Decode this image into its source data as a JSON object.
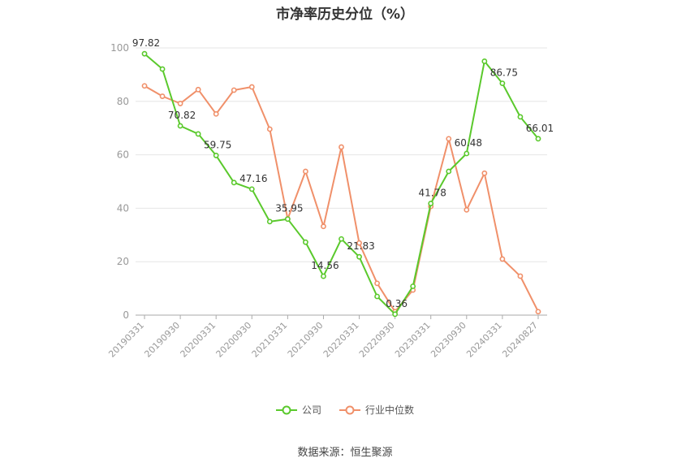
{
  "chart_data": {
    "type": "line",
    "title": "市净率历史分位（%）",
    "ylim": [
      0,
      100
    ],
    "yticks": [
      "0",
      "20",
      "40",
      "60",
      "80",
      "100"
    ],
    "x_tick_labels": [
      "20190331",
      "20190930",
      "20200331",
      "20200930",
      "20210331",
      "20210930",
      "20220331",
      "20220930",
      "20230331",
      "20230930",
      "20240331",
      "20240827"
    ],
    "grid": true,
    "legend_position": "bottom",
    "series": [
      {
        "name": "公司",
        "color": "#5ac92c",
        "values": [
          97.82,
          92.1,
          70.82,
          67.8,
          59.75,
          49.6,
          47.16,
          35.0,
          35.95,
          27.3,
          14.56,
          28.5,
          21.83,
          7.0,
          0.36,
          10.8,
          41.78,
          53.8,
          60.48,
          95.0,
          86.75,
          74.2,
          66.01
        ],
        "data_labels": {
          "0": "97.82",
          "2": "70.82",
          "4": "59.75",
          "6": "47.16",
          "8": "35.95",
          "10": "14.56",
          "12": "21.83",
          "14": "0.36",
          "16": "41.78",
          "18": "60.48",
          "20": "86.75",
          "22": "66.01"
        }
      },
      {
        "name": "行业中位数",
        "color": "#f0906a",
        "values": [
          85.8,
          81.9,
          79.2,
          84.4,
          75.3,
          84.2,
          85.4,
          69.6,
          36.0,
          53.8,
          33.2,
          62.9,
          27.0,
          11.9,
          1.3,
          9.4,
          40.7,
          66.0,
          39.4,
          53.1,
          21.0,
          14.6,
          1.3
        ]
      }
    ]
  },
  "source": "数据来源：恒生聚源"
}
